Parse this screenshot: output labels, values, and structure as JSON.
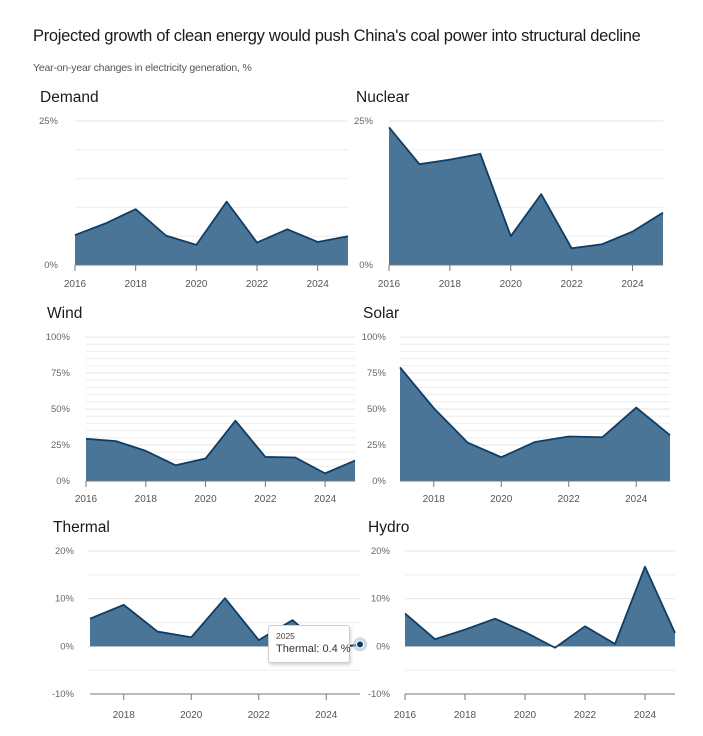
{
  "header": {
    "title": "Projected growth of clean energy would push China's coal power into structural decline",
    "subtitle": "Year-on-year changes in electricity generation, %"
  },
  "colors": {
    "area_fill": "#4a7596",
    "line": "#0f3d66"
  },
  "tooltip": {
    "year": "2025",
    "text": "Thermal: 0.4 %"
  },
  "chart_data": [
    {
      "type": "area",
      "title": "Demand",
      "ylabel": "%",
      "ylim": [
        0,
        25
      ],
      "yticks": [
        "0%",
        "25%"
      ],
      "ytick_values": [
        0,
        25
      ],
      "grid_step": 5,
      "xticks": [
        "2016",
        "2018",
        "2020",
        "2022",
        "2024"
      ],
      "x": [
        2016,
        2017,
        2018,
        2019,
        2020,
        2021,
        2022,
        2023,
        2024,
        2025
      ],
      "values": [
        5.2,
        7.2,
        9.7,
        5.1,
        3.5,
        11.0,
        3.9,
        6.2,
        4.0,
        5.0
      ],
      "xlim": [
        2016,
        2025
      ]
    },
    {
      "type": "area",
      "title": "Nuclear",
      "ylim": [
        0,
        25
      ],
      "yticks": [
        "0%",
        "25%"
      ],
      "ytick_values": [
        0,
        25
      ],
      "grid_step": 5,
      "xticks": [
        "2016",
        "2018",
        "2020",
        "2022",
        "2024"
      ],
      "x": [
        2016,
        2017,
        2018,
        2019,
        2020,
        2021,
        2022,
        2023,
        2024,
        2025
      ],
      "values": [
        23.9,
        17.5,
        18.3,
        19.3,
        5.0,
        12.3,
        2.9,
        3.6,
        5.8,
        9.1
      ],
      "xlim": [
        2016,
        2025
      ]
    },
    {
      "type": "area",
      "title": "Wind",
      "ylim": [
        0,
        100
      ],
      "yticks": [
        "0%",
        "25%",
        "50%",
        "75%",
        "100%"
      ],
      "ytick_values": [
        0,
        25,
        50,
        75,
        100
      ],
      "grid_step": 5,
      "xticks": [
        "2016",
        "2018",
        "2020",
        "2022",
        "2024"
      ],
      "x": [
        2016,
        2017,
        2018,
        2019,
        2020,
        2021,
        2022,
        2023,
        2024,
        2025
      ],
      "values": [
        29.3,
        27.7,
        20.9,
        10.9,
        15.6,
        41.9,
        16.7,
        16.3,
        5.3,
        14.2
      ],
      "xlim": [
        2016,
        2025
      ]
    },
    {
      "type": "area",
      "title": "Solar",
      "ylim": [
        0,
        100
      ],
      "yticks": [
        "0%",
        "25%",
        "50%",
        "75%",
        "100%"
      ],
      "ytick_values": [
        0,
        25,
        50,
        75,
        100
      ],
      "grid_step": 5,
      "xticks": [
        "2018",
        "2020",
        "2022",
        "2024"
      ],
      "x": [
        2017,
        2018,
        2019,
        2020,
        2021,
        2022,
        2023,
        2024,
        2025
      ],
      "values": [
        78.9,
        50.6,
        26.7,
        16.5,
        27.1,
        30.9,
        30.4,
        51.0,
        31.8
      ],
      "xlim": [
        2017,
        2025
      ]
    },
    {
      "type": "area",
      "title": "Thermal",
      "ylim": [
        -10,
        20
      ],
      "yticks": [
        "-10%",
        "0%",
        "10%",
        "20%"
      ],
      "ytick_values": [
        -10,
        0,
        10,
        20
      ],
      "grid_step": 5,
      "xticks": [
        "2018",
        "2020",
        "2022",
        "2024"
      ],
      "x": [
        2017,
        2018,
        2019,
        2020,
        2021,
        2022,
        2023,
        2024,
        2025
      ],
      "values": [
        5.8,
        8.7,
        3.1,
        1.9,
        10.1,
        1.3,
        5.5,
        -0.6,
        0.4
      ],
      "xlim": [
        2017,
        2025
      ],
      "highlight": {
        "x": 2025,
        "value": 0.4
      }
    },
    {
      "type": "area",
      "title": "Hydro",
      "ylim": [
        -10,
        20
      ],
      "yticks": [
        "-10%",
        "0%",
        "10%",
        "20%"
      ],
      "ytick_values": [
        -10,
        0,
        10,
        20
      ],
      "grid_step": 5,
      "xticks": [
        "2016",
        "2018",
        "2020",
        "2022",
        "2024"
      ],
      "x": [
        2016,
        2017,
        2018,
        2019,
        2020,
        2021,
        2022,
        2023,
        2024,
        2025
      ],
      "values": [
        6.9,
        1.5,
        3.5,
        5.8,
        3.0,
        -0.3,
        4.2,
        0.5,
        16.7,
        2.8
      ],
      "xlim": [
        2016,
        2025
      ]
    }
  ]
}
